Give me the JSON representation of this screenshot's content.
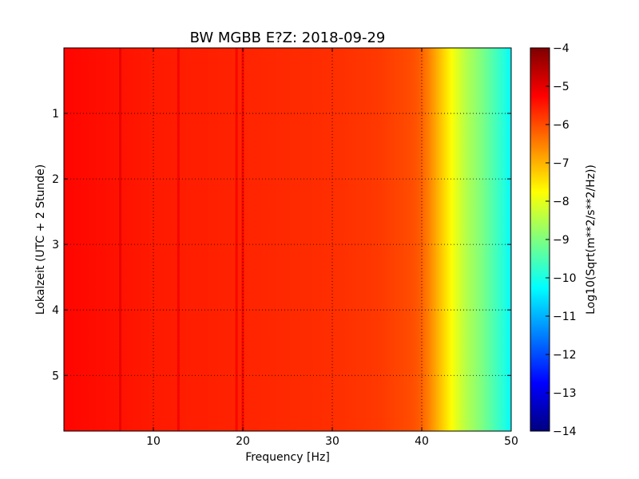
{
  "chart_data": {
    "type": "heatmap",
    "title": "BW MGBB E?Z: 2018-09-29",
    "xlabel": "Frequency [Hz]",
    "ylabel": "Lokalzeit (UTC + 2 Stunde)",
    "xlim": [
      0,
      50
    ],
    "ylim": [
      5.85,
      0
    ],
    "x_ticks": [
      10,
      20,
      30,
      40,
      50
    ],
    "x_tick_labels": [
      "10",
      "20",
      "30",
      "40",
      "50"
    ],
    "y_ticks": [
      1,
      2,
      3,
      4,
      5
    ],
    "y_tick_labels": [
      "1",
      "2",
      "3",
      "4",
      "5"
    ],
    "grid": true,
    "colormap": "jet",
    "colorbar": {
      "label": "Log10(Sqrt(m**2/s**2/Hz))",
      "range": [
        -14,
        -4
      ],
      "ticks": [
        -4,
        -5,
        -6,
        -7,
        -8,
        -9,
        -10,
        -11,
        -12,
        -13,
        -14
      ],
      "tick_labels": [
        "−4",
        "−5",
        "−6",
        "−7",
        "−8",
        "−9",
        "−10",
        "−11",
        "−12",
        "−13",
        "−14"
      ]
    },
    "spectrum_profile": {
      "frequency_hz": [
        0,
        5,
        10,
        20,
        30,
        35,
        37,
        39,
        40,
        41,
        42,
        43,
        44,
        45,
        46,
        47,
        48,
        49,
        50
      ],
      "log10_amplitude": [
        -5.3,
        -5.4,
        -5.5,
        -5.6,
        -5.7,
        -5.8,
        -5.9,
        -6.0,
        -6.2,
        -6.6,
        -7.1,
        -7.6,
        -8.1,
        -8.5,
        -8.8,
        -9.1,
        -9.5,
        -9.8,
        -10.3
      ]
    },
    "narrowband_lines_hz": [
      6.3,
      12.8,
      19.3,
      20.0
    ],
    "colors": {
      "jet": [
        "#00007f",
        "#0000ff",
        "#007fff",
        "#00ffff",
        "#7fff7f",
        "#ffff00",
        "#ff7f00",
        "#ff0000",
        "#7f0000"
      ]
    }
  }
}
